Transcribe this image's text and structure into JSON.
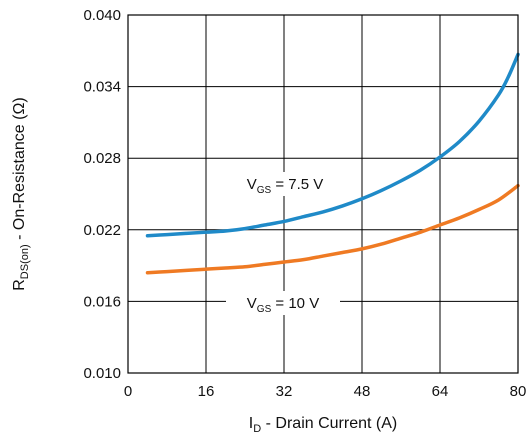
{
  "chart_data": {
    "type": "line",
    "xlabel": {
      "main": "I",
      "sub": "D",
      "rest": " - Drain Current (A)"
    },
    "ylabel": {
      "main": "R",
      "sub": "DS(on)",
      "rest": " - On-Resistance (Ω)"
    },
    "xlim": [
      0,
      80
    ],
    "ylim": [
      0.01,
      0.04
    ],
    "x_ticks": [
      0,
      16,
      32,
      48,
      64,
      80
    ],
    "x_tick_labels": [
      "0",
      "16",
      "32",
      "48",
      "64",
      "80"
    ],
    "y_ticks": [
      0.01,
      0.016,
      0.022,
      0.028,
      0.034,
      0.04
    ],
    "y_tick_labels": [
      "0.010",
      "0.016",
      "0.022",
      "0.028",
      "0.034",
      "0.040"
    ],
    "grid": true,
    "series": [
      {
        "name": {
          "main": "V",
          "sub": "GS",
          "rest": " = 7.5 V"
        },
        "color": "#1f8ac8",
        "x": [
          4,
          8,
          12,
          16,
          20,
          24,
          28,
          32,
          36,
          40,
          44,
          48,
          52,
          56,
          60,
          64,
          68,
          72,
          76,
          78,
          80
        ],
        "y": [
          0.0215,
          0.0216,
          0.0217,
          0.0218,
          0.0219,
          0.0221,
          0.0224,
          0.0227,
          0.0231,
          0.0235,
          0.024,
          0.0246,
          0.0253,
          0.0261,
          0.027,
          0.0281,
          0.0294,
          0.0311,
          0.0333,
          0.0348,
          0.0367
        ]
      },
      {
        "name": {
          "main": "V",
          "sub": "GS",
          "rest": " = 10 V"
        },
        "color": "#ef7a23",
        "x": [
          4,
          8,
          12,
          16,
          20,
          24,
          28,
          32,
          36,
          40,
          44,
          48,
          52,
          56,
          60,
          64,
          68,
          72,
          76,
          80
        ],
        "y": [
          0.0184,
          0.0185,
          0.0186,
          0.0187,
          0.0188,
          0.0189,
          0.0191,
          0.0193,
          0.0195,
          0.0198,
          0.0201,
          0.0204,
          0.0208,
          0.0213,
          0.0218,
          0.0224,
          0.023,
          0.0237,
          0.0245,
          0.0257
        ]
      }
    ]
  }
}
